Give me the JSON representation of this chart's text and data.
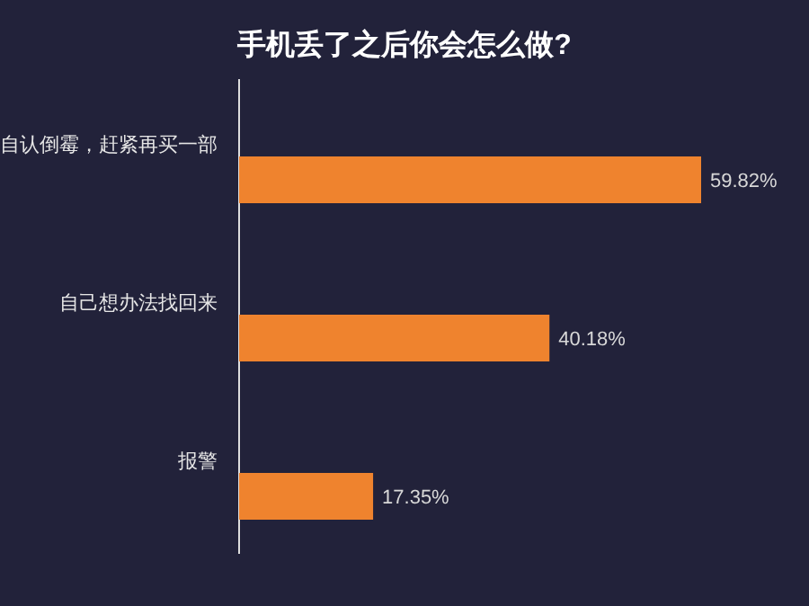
{
  "chart_data": {
    "type": "bar",
    "orientation": "horizontal",
    "title": "手机丢了之后你会怎么做?",
    "categories": [
      "自认倒霉，赶紧再买一部",
      "自己想办法找回来",
      "报警"
    ],
    "values": [
      59.82,
      40.18,
      17.35
    ],
    "value_labels": [
      "59.82%",
      "40.18%",
      "17.35%"
    ],
    "color": "#ef832e"
  }
}
